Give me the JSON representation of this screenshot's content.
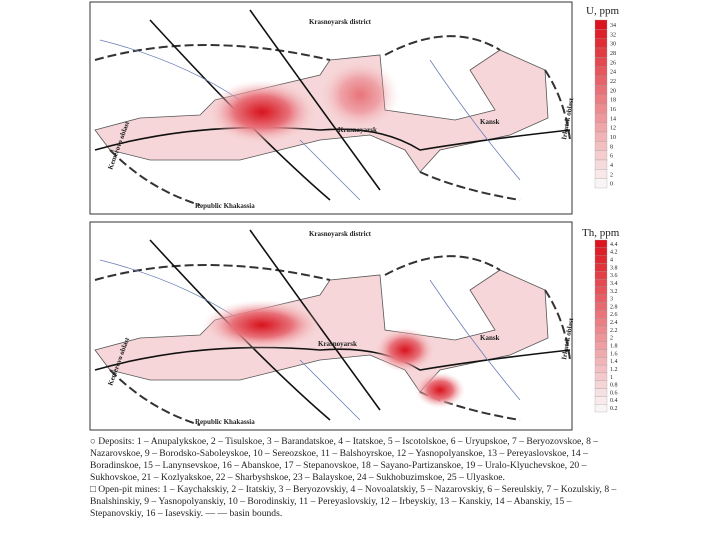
{
  "map_u": {
    "labels": {
      "district": "Krasnoyarsk district",
      "city": "Krasnoyarsk",
      "kansk": "Kansk",
      "khakassia": "Republic Khakassia",
      "kemerovo": "Kemerovo oblast",
      "irkutsk": "Irkutsk oblast"
    },
    "legend": {
      "title": "U, ppm",
      "values": [
        "34",
        "32",
        "30",
        "28",
        "26",
        "24",
        "22",
        "20",
        "18",
        "16",
        "14",
        "12",
        "10",
        "8",
        "6",
        "4",
        "2",
        "0"
      ]
    }
  },
  "map_th": {
    "labels": {
      "district": "Krasnoyarsk district",
      "city": "Krasnoyarsk",
      "kansk": "Kansk",
      "khakassia": "Republic Khakassia",
      "kemerovo": "Kemerovo oblast",
      "irkutsk": "Irkutsk oblast"
    },
    "legend": {
      "title": "Th, ppm",
      "values": [
        "4.4",
        "4.2",
        "4",
        "3.8",
        "3.6",
        "3.4",
        "3.2",
        "3",
        "2.8",
        "2.6",
        "2.4",
        "2.2",
        "2",
        "1.8",
        "1.6",
        "1.4",
        "1.2",
        "1",
        "0.8",
        "0.6",
        "0.4",
        "0.2"
      ]
    }
  },
  "caption": {
    "deposits": "○ Deposits: 1 – Anupalykskoe, 2 – Tisulskoe, 3 – Barandatskoe, 4 – Itatskoe, 5 – Iscotolskoe, 6 – Uryupskoe, 7 – Beryozovskoe, 8 – Nazarovskoe, 9 – Borodsko-Saboleyskoe, 10 – Sereozskoe, 11 – Balshoyrskoe, 12 – Yasnopolyanskoe, 13 – Pereyaslovskoe, 14 – Boradinskoe, 15 – Lanynsevskoe, 16 – Abanskoe, 17 – Stepanovskoe, 18 – Sayano-Partizanskoe, 19 – Uralo-Klyuchevskoe, 20 – Sukhovskoe, 21 – Kozlyakskoe, 22 – Sharbyshskoe, 23 – Balayskoe, 24 – Sukhobuzimskoe, 25 – Ulyaskoe.",
    "mines": "□ Open-pit mines: 1 – Kaychakskiy, 2 – Itatskiy, 3 – Beryozovskiy, 4 – Novoalatskiy, 5 – Nazarovskiy, 6 – Sereulskiy, 7 – Kozulskiy, 8 – Bnalshinskiy, 9 – Yasnopolyanskiy, 10 – Borodinskiy, 11 – Pereyaslovskiy, 12 – Irbeyskiy, 13 – Kanskiy, 14 – Abanskiy, 15 – Stepanovskiy, 16 – Iasevskiy. — — basin bounds."
  }
}
